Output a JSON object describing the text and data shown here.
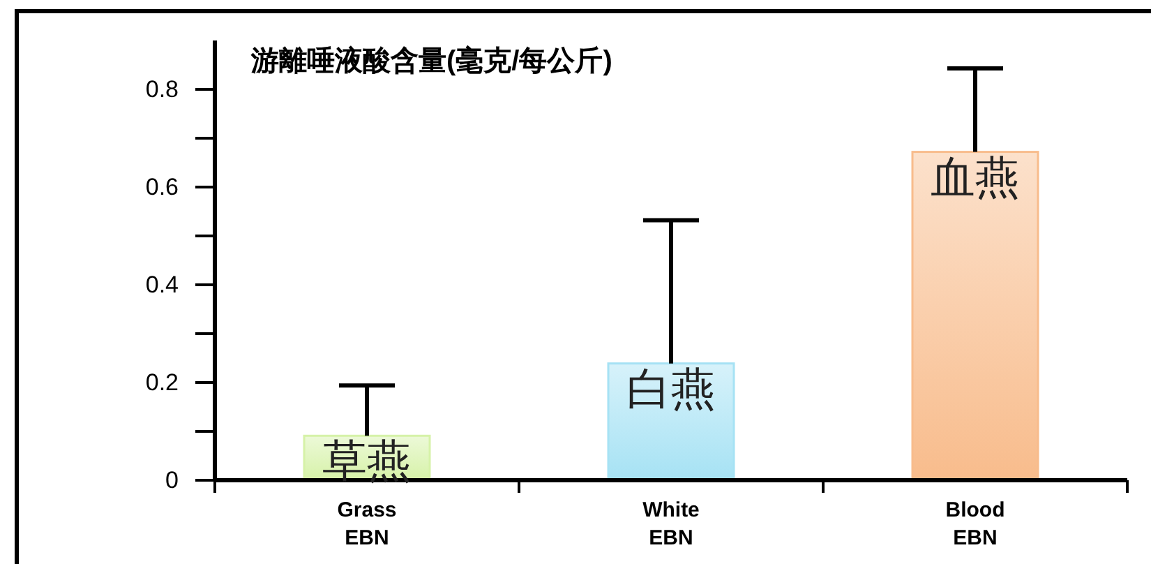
{
  "chart_data": {
    "type": "bar",
    "title": "游離唾液酸含量(毫克/每公斤)",
    "categories": [
      "Grass\nEBN",
      "White\nEBN",
      "Blood\nEBN"
    ],
    "values": [
      0.091,
      0.239,
      0.672
    ],
    "errors": [
      [
        0.091,
        0.194
      ],
      [
        0.239,
        0.532
      ],
      [
        0.672,
        0.843
      ]
    ],
    "colors": [
      "#d6f2a8",
      "#a6e2f4",
      "#f8bc8c"
    ],
    "ylim": [
      0,
      0.9
    ],
    "yticks": [
      0,
      {
        "value": 0.1,
        "label": null
      },
      0.2,
      {
        "value": 0.3,
        "label": null
      },
      0.4,
      {
        "value": 0.5,
        "label": null
      },
      0.6,
      {
        "value": 0.7,
        "label": null
      },
      0.8
    ],
    "annotations": [
      "草燕",
      "白燕",
      "血燕"
    ]
  }
}
